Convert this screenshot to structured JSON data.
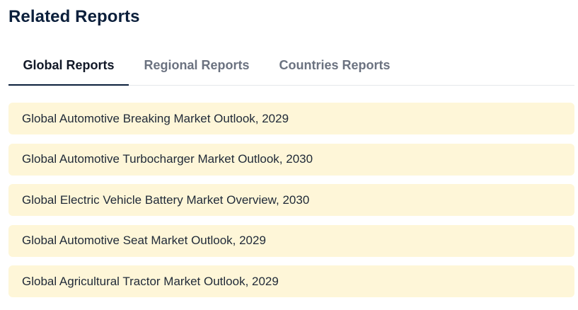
{
  "section": {
    "title": "Related Reports"
  },
  "tabs": [
    {
      "label": "Global Reports",
      "active": true
    },
    {
      "label": "Regional Reports",
      "active": false
    },
    {
      "label": "Countries Reports",
      "active": false
    }
  ],
  "reports": [
    {
      "title": "Global Automotive Breaking Market Outlook, 2029"
    },
    {
      "title": "Global Automotive Turbocharger Market Outlook, 2030"
    },
    {
      "title": "Global Electric Vehicle Battery Market Overview, 2030"
    },
    {
      "title": "Global Automotive Seat Market Outlook, 2029"
    },
    {
      "title": "Global Agricultural Tractor Market Outlook, 2029"
    }
  ],
  "colors": {
    "title": "#0b1f3b",
    "active_tab": "#111827",
    "inactive_tab": "#6b7280",
    "tab_underline": "#0b1f3b",
    "report_background": "#fef6d8",
    "report_text": "#1f2937"
  }
}
